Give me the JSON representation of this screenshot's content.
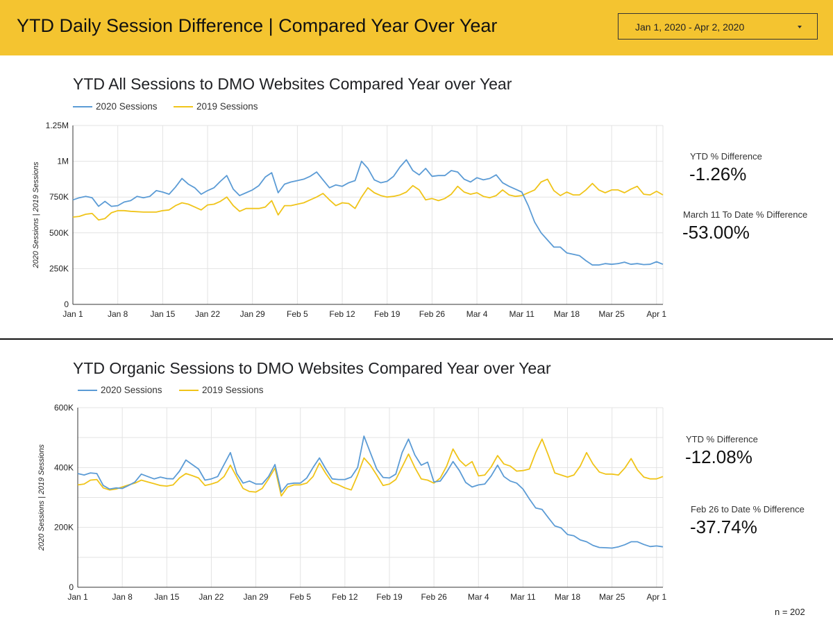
{
  "header": {
    "title": "YTD Daily Session Difference | Compared Year Over Year",
    "date_range": "Jan 1, 2020 - Apr 2, 2020"
  },
  "stats": {
    "top_ytd_label": "YTD % Difference",
    "top_ytd_value": "-1.26%",
    "top_since_label": "March 11 To Date % Difference",
    "top_since_value": "-53.00%",
    "bottom_ytd_label": "YTD % Difference",
    "bottom_ytd_value": "-12.08%",
    "bottom_since_label": "Feb 26 to Date % Difference",
    "bottom_since_value": "-37.74%"
  },
  "footer": {
    "n_note": "n = 202"
  },
  "colors": {
    "series_2020": "#5b9bd5",
    "series_2019": "#f0c419"
  },
  "chart_data": [
    {
      "type": "line",
      "title": "YTD All Sessions to DMO Websites Compared Year over Year",
      "ylabel": "2020 Sessions | 2019 Sessions",
      "ylim": [
        0,
        1250000
      ],
      "yticks": [
        0,
        250000,
        500000,
        750000,
        1000000,
        1250000
      ],
      "ytick_labels": [
        "0",
        "250K",
        "500K",
        "750K",
        "1M",
        "1.25M"
      ],
      "xlim": [
        1,
        93
      ],
      "x_unit": "day of year",
      "xticks": [
        1,
        8,
        15,
        22,
        29,
        36,
        43,
        50,
        57,
        64,
        71,
        78,
        85,
        92
      ],
      "xtick_labels": [
        "Jan 1",
        "Jan 8",
        "Jan 15",
        "Jan 22",
        "Jan 29",
        "Feb 5",
        "Feb 12",
        "Feb 19",
        "Feb 26",
        "Mar 4",
        "Mar 11",
        "Mar 18",
        "Mar 25",
        "Apr 1"
      ],
      "grid": true,
      "legend": "top-left",
      "series": [
        {
          "name": "2020 Sessions",
          "values": [
            730000,
            745000,
            755000,
            745000,
            685000,
            720000,
            685000,
            690000,
            715000,
            725000,
            755000,
            745000,
            755000,
            795000,
            785000,
            770000,
            820000,
            880000,
            840000,
            815000,
            770000,
            795000,
            815000,
            860000,
            900000,
            805000,
            760000,
            780000,
            800000,
            830000,
            890000,
            920000,
            780000,
            840000,
            855000,
            865000,
            875000,
            895000,
            925000,
            870000,
            815000,
            835000,
            825000,
            850000,
            865000,
            1000000,
            950000,
            870000,
            850000,
            860000,
            895000,
            960000,
            1010000,
            935000,
            905000,
            950000,
            895000,
            900000,
            900000,
            935000,
            925000,
            875000,
            855000,
            885000,
            870000,
            880000,
            905000,
            850000,
            825000,
            805000,
            785000,
            690000,
            575000,
            500000,
            450000,
            400000,
            400000,
            360000,
            350000,
            340000,
            305000,
            275000,
            275000,
            285000,
            280000,
            285000,
            295000,
            280000,
            285000,
            278000,
            280000,
            298000,
            280000
          ]
        },
        {
          "name": "2019 Sessions",
          "values": [
            610000,
            615000,
            630000,
            635000,
            590000,
            600000,
            640000,
            655000,
            655000,
            650000,
            648000,
            645000,
            645000,
            645000,
            655000,
            660000,
            690000,
            710000,
            700000,
            680000,
            660000,
            695000,
            700000,
            720000,
            750000,
            690000,
            650000,
            670000,
            670000,
            670000,
            680000,
            725000,
            625000,
            690000,
            690000,
            700000,
            710000,
            730000,
            750000,
            775000,
            730000,
            690000,
            710000,
            705000,
            670000,
            750000,
            815000,
            780000,
            760000,
            750000,
            755000,
            765000,
            785000,
            830000,
            800000,
            730000,
            740000,
            725000,
            740000,
            770000,
            825000,
            785000,
            770000,
            780000,
            755000,
            745000,
            760000,
            800000,
            765000,
            755000,
            760000,
            780000,
            800000,
            855000,
            875000,
            795000,
            760000,
            785000,
            765000,
            765000,
            800000,
            845000,
            800000,
            780000,
            800000,
            800000,
            780000,
            805000,
            825000,
            770000,
            765000,
            790000,
            765000
          ]
        }
      ]
    },
    {
      "type": "line",
      "title": "YTD Organic Sessions to DMO Websites Compared Year over Year",
      "ylabel": "2020 Sessions | 2019 Sessions",
      "ylim": [
        0,
        600000
      ],
      "yticks": [
        0,
        200000,
        400000,
        600000
      ],
      "ytick_labels": [
        "0",
        "200K",
        "400K",
        "600K"
      ],
      "xlim": [
        1,
        93
      ],
      "x_unit": "day of year",
      "xticks": [
        1,
        8,
        15,
        22,
        29,
        36,
        43,
        50,
        57,
        64,
        71,
        78,
        85,
        92
      ],
      "xtick_labels": [
        "Jan 1",
        "Jan 8",
        "Jan 15",
        "Jan 22",
        "Jan 29",
        "Feb 5",
        "Feb 12",
        "Feb 19",
        "Feb 26",
        "Mar 4",
        "Mar 11",
        "Mar 18",
        "Mar 25",
        "Apr 1"
      ],
      "grid": true,
      "legend": "top-left",
      "series": [
        {
          "name": "2020 Sessions",
          "values": [
            380000,
            375000,
            382000,
            380000,
            340000,
            328000,
            332000,
            330000,
            340000,
            352000,
            378000,
            370000,
            362000,
            368000,
            363000,
            362000,
            388000,
            425000,
            410000,
            395000,
            358000,
            362000,
            370000,
            410000,
            450000,
            380000,
            348000,
            355000,
            345000,
            345000,
            370000,
            410000,
            318000,
            345000,
            348000,
            348000,
            365000,
            400000,
            432000,
            395000,
            362000,
            360000,
            360000,
            368000,
            400000,
            505000,
            450000,
            395000,
            367000,
            365000,
            378000,
            450000,
            495000,
            442000,
            408000,
            418000,
            352000,
            355000,
            385000,
            420000,
            390000,
            350000,
            335000,
            342000,
            345000,
            372000,
            408000,
            370000,
            355000,
            348000,
            328000,
            295000,
            265000,
            260000,
            232000,
            205000,
            198000,
            176000,
            172000,
            158000,
            152000,
            140000,
            133000,
            132000,
            131000,
            135000,
            142000,
            152000,
            152000,
            143000,
            136000,
            138000,
            135000
          ]
        },
        {
          "name": "2019 Sessions",
          "values": [
            342000,
            345000,
            358000,
            360000,
            332000,
            325000,
            328000,
            335000,
            342000,
            348000,
            358000,
            352000,
            346000,
            340000,
            338000,
            342000,
            365000,
            380000,
            373000,
            365000,
            340000,
            345000,
            352000,
            370000,
            408000,
            368000,
            330000,
            320000,
            318000,
            330000,
            362000,
            398000,
            305000,
            335000,
            342000,
            342000,
            348000,
            370000,
            415000,
            380000,
            350000,
            342000,
            332000,
            325000,
            375000,
            432000,
            408000,
            375000,
            340000,
            345000,
            360000,
            402000,
            445000,
            400000,
            362000,
            358000,
            348000,
            365000,
            405000,
            462000,
            425000,
            405000,
            420000,
            372000,
            375000,
            402000,
            440000,
            412000,
            405000,
            388000,
            390000,
            395000,
            450000,
            495000,
            440000,
            382000,
            375000,
            368000,
            375000,
            405000,
            450000,
            412000,
            385000,
            378000,
            378000,
            375000,
            398000,
            430000,
            392000,
            368000,
            362000,
            362000,
            370000
          ]
        }
      ]
    }
  ]
}
